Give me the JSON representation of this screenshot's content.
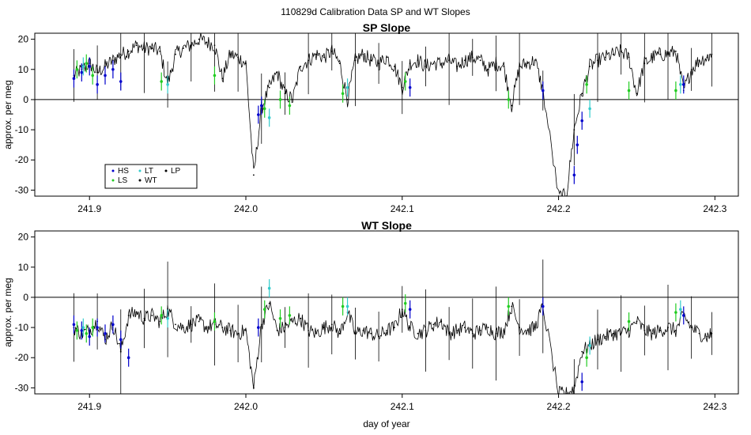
{
  "figure_title": "110829d   Calibration Data SP and WT Slopes",
  "chart_data": [
    {
      "type": "line",
      "title": "SP Slope",
      "ylabel": "approx. per meg",
      "xlabel": "",
      "xlim": [
        241.865,
        242.315
      ],
      "ylim": [
        -32,
        22
      ],
      "xticks": [
        "241.9",
        "242.0",
        "242.1",
        "242.2",
        "242.3"
      ],
      "xtick_values": [
        241.9,
        242.0,
        242.1,
        242.2,
        242.3
      ],
      "yticks": [
        "-30",
        "-20",
        "-10",
        "0",
        "10",
        "20"
      ],
      "ytick_values": [
        -30,
        -20,
        -10,
        0,
        10,
        20
      ],
      "reference_line_y": 0,
      "legend": {
        "placement": "bottom-left",
        "entries": [
          {
            "label": "HS",
            "color": "#0000cc"
          },
          {
            "label": "LT",
            "color": "#33cccc"
          },
          {
            "label": "LP",
            "color": "#000000"
          },
          {
            "label": "LS",
            "color": "#22cc22"
          },
          {
            "label": "WT",
            "color": "#000000"
          }
        ]
      },
      "series": [
        {
          "name": "WT",
          "color": "#000000",
          "x": [
            241.89,
            241.895,
            241.9,
            241.905,
            241.91,
            241.915,
            241.92,
            241.925,
            241.93,
            241.935,
            241.94,
            241.945,
            241.95,
            241.955,
            241.96,
            241.965,
            241.97,
            241.975,
            241.98,
            241.985,
            241.99,
            241.995,
            242.0,
            242.005,
            242.01,
            242.015,
            242.02,
            242.025,
            242.03,
            242.035,
            242.04,
            242.045,
            242.05,
            242.055,
            242.06,
            242.065,
            242.07,
            242.075,
            242.08,
            242.085,
            242.09,
            242.095,
            242.1,
            242.105,
            242.11,
            242.115,
            242.12,
            242.125,
            242.13,
            242.135,
            242.14,
            242.145,
            242.15,
            242.155,
            242.16,
            242.165,
            242.17,
            242.175,
            242.18,
            242.185,
            242.19,
            242.2,
            242.205,
            242.21,
            242.215,
            242.22,
            242.225,
            242.23,
            242.235,
            242.24,
            242.245,
            242.25,
            242.255,
            242.26,
            242.265,
            242.27,
            242.275,
            242.28,
            242.285,
            242.29,
            242.295,
            242.298
          ],
          "y": [
            8,
            10,
            12,
            9,
            11,
            13,
            15,
            16,
            18,
            17,
            17,
            16,
            5,
            15,
            17,
            18,
            20,
            19,
            18,
            7,
            15,
            14,
            12,
            -25,
            -3,
            4,
            9,
            2,
            0,
            11,
            13,
            15,
            14,
            16,
            12,
            0,
            13,
            15,
            13,
            12,
            14,
            11,
            4,
            12,
            13,
            11,
            12,
            12,
            13,
            11,
            13,
            14,
            13,
            10,
            12,
            11,
            -2,
            11,
            12,
            13,
            3,
            -32,
            -32,
            -10,
            2,
            11,
            13,
            14,
            15,
            16,
            14,
            2,
            12,
            14,
            15,
            15,
            16,
            3,
            10,
            13,
            14,
            15
          ]
        },
        {
          "name": "HS",
          "color": "#0000cc",
          "x": [
            241.89,
            241.895,
            241.9,
            241.905,
            241.91,
            241.915,
            241.92,
            242.008,
            242.01,
            242.105,
            242.19,
            242.21,
            242.212,
            242.215,
            242.28
          ],
          "y": [
            7,
            9,
            11,
            5,
            8,
            10,
            6,
            -5,
            -2,
            4,
            3,
            -25,
            -15,
            -7,
            5
          ]
        },
        {
          "name": "LS",
          "color": "#22cc22",
          "x": [
            241.892,
            241.898,
            241.902,
            241.946,
            241.98,
            242.012,
            242.022,
            242.028,
            242.062,
            242.102,
            242.168,
            242.218,
            242.245,
            242.275
          ],
          "y": [
            10,
            12,
            8,
            6,
            8,
            -3,
            0,
            -2,
            2,
            6,
            0,
            5,
            3,
            3
          ]
        },
        {
          "name": "LT",
          "color": "#33cccc",
          "x": [
            241.896,
            241.95,
            242.015,
            242.065,
            242.22,
            242.278
          ],
          "y": [
            11,
            5,
            -6,
            4,
            -3,
            5
          ]
        }
      ]
    },
    {
      "type": "line",
      "title": "WT Slope",
      "ylabel": "approx. per meg",
      "xlabel": "day of year",
      "xlim": [
        241.865,
        242.315
      ],
      "ylim": [
        -32,
        22
      ],
      "xticks": [
        "241.9",
        "242.0",
        "242.1",
        "242.2",
        "242.3"
      ],
      "xtick_values": [
        241.9,
        242.0,
        242.1,
        242.2,
        242.3
      ],
      "yticks": [
        "-30",
        "-20",
        "-10",
        "0",
        "10",
        "20"
      ],
      "ytick_values": [
        -30,
        -20,
        -10,
        0,
        10,
        20
      ],
      "reference_line_y": 0,
      "series": [
        {
          "name": "WT",
          "color": "#000000",
          "x": [
            241.89,
            241.895,
            241.9,
            241.905,
            241.91,
            241.915,
            241.92,
            241.925,
            241.93,
            241.935,
            241.94,
            241.945,
            241.95,
            241.955,
            241.96,
            241.965,
            241.97,
            241.975,
            241.98,
            241.985,
            241.99,
            241.995,
            242.0,
            242.005,
            242.01,
            242.015,
            242.02,
            242.025,
            242.03,
            242.035,
            242.04,
            242.045,
            242.05,
            242.055,
            242.06,
            242.065,
            242.07,
            242.075,
            242.08,
            242.085,
            242.09,
            242.095,
            242.1,
            242.105,
            242.11,
            242.115,
            242.12,
            242.125,
            242.13,
            242.135,
            242.14,
            242.145,
            242.15,
            242.155,
            242.16,
            242.165,
            242.17,
            242.175,
            242.18,
            242.185,
            242.19,
            242.2,
            242.205,
            242.21,
            242.215,
            242.22,
            242.225,
            242.23,
            242.235,
            242.24,
            242.245,
            242.25,
            242.255,
            242.26,
            242.265,
            242.27,
            242.275,
            242.28,
            242.285,
            242.29,
            242.295,
            242.298
          ],
          "y": [
            -10,
            -12,
            -11,
            -8,
            -14,
            -9,
            -18,
            -6,
            -5,
            -7,
            -6,
            -8,
            -4,
            -9,
            -10,
            -9,
            -8,
            -10,
            -9,
            -10,
            -11,
            -12,
            -11,
            -30,
            -9,
            -2,
            -11,
            -10,
            -8,
            -7,
            -11,
            -12,
            -10,
            -9,
            -12,
            -5,
            -12,
            -11,
            -12,
            -13,
            -11,
            -10,
            -4,
            -10,
            -12,
            -11,
            -9,
            -8,
            -12,
            -11,
            -10,
            -12,
            -11,
            -10,
            -12,
            -11,
            -3,
            -10,
            -11,
            -10,
            -3,
            -32,
            -32,
            -30,
            -18,
            -16,
            -14,
            -13,
            -12,
            -12,
            -11,
            -8,
            -11,
            -12,
            -11,
            -10,
            -11,
            -6,
            -10,
            -12,
            -13,
            -12
          ]
        },
        {
          "name": "HS",
          "color": "#0000cc",
          "x": [
            241.89,
            241.895,
            241.9,
            241.905,
            241.91,
            241.915,
            241.92,
            241.925,
            242.008,
            242.105,
            242.19,
            242.215,
            242.28
          ],
          "y": [
            -9,
            -11,
            -13,
            -10,
            -12,
            -9,
            -14,
            -20,
            -10,
            -4,
            -3,
            -28,
            -6
          ]
        },
        {
          "name": "LS",
          "color": "#22cc22",
          "x": [
            241.892,
            241.898,
            241.902,
            241.946,
            241.98,
            242.012,
            242.022,
            242.028,
            242.062,
            242.102,
            242.168,
            242.218,
            242.245,
            242.275
          ],
          "y": [
            -11,
            -12,
            -10,
            -6,
            -8,
            -4,
            -7,
            -6,
            -3,
            -2,
            -3,
            -20,
            -8,
            -5
          ]
        },
        {
          "name": "LT",
          "color": "#33cccc",
          "x": [
            241.896,
            241.95,
            242.015,
            242.065,
            242.22,
            242.278
          ],
          "y": [
            -10,
            -7,
            3,
            -3,
            -16,
            -4
          ]
        }
      ]
    }
  ]
}
